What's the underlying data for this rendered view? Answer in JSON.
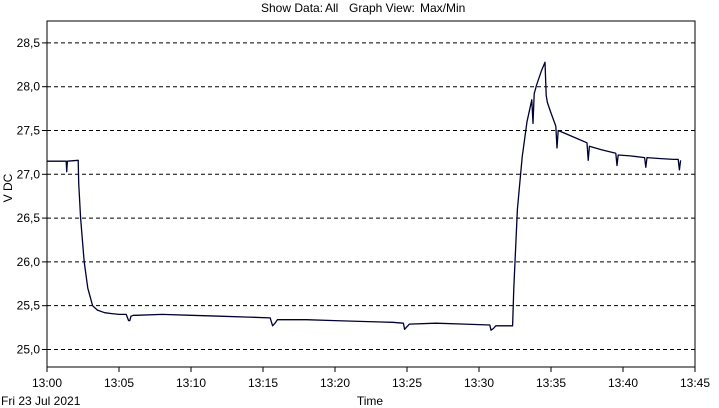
{
  "header": {
    "show_data_label": "Show Data:",
    "show_data_value": "All",
    "graph_view_label": "Graph View:",
    "graph_view_value": "Max/Min"
  },
  "chart_data": {
    "type": "line",
    "xlabel": "Time",
    "ylabel": "V DC",
    "date_label": "Fri 23 Jul 2021",
    "xlim": [
      "13:00",
      "13:45"
    ],
    "ylim": [
      24.8,
      28.75
    ],
    "grid": true,
    "grid_style": "dashed",
    "x_ticks": [
      "13:00",
      "13:05",
      "13:10",
      "13:15",
      "13:20",
      "13:25",
      "13:30",
      "13:35",
      "13:40",
      "13:45"
    ],
    "y_ticks": [
      "25,0",
      "25,5",
      "26,0",
      "26,5",
      "27,0",
      "27,5",
      "28,0",
      "28,5"
    ],
    "y_tick_values": [
      25.0,
      25.5,
      26.0,
      26.5,
      27.0,
      27.5,
      28.0,
      28.5
    ],
    "line_color": "#000033",
    "series": [
      {
        "x": [
          "13:00:00",
          "13:01:20",
          "13:01:22",
          "13:01:25",
          "13:02:10",
          "13:02:12",
          "13:02:20",
          "13:02:35",
          "13:02:50",
          "13:03:10",
          "13:03:30",
          "13:04:00",
          "13:04:30",
          "13:05:00",
          "13:05:30",
          "13:05:40",
          "13:05:45",
          "13:05:50",
          "13:06:00",
          "13:06:10",
          "13:08:00",
          "13:10:00",
          "13:12:00",
          "13:14:00",
          "13:15:30",
          "13:15:40",
          "13:15:50",
          "13:16:00",
          "13:18:00",
          "13:20:00",
          "13:22:00",
          "13:24:00",
          "13:24:45",
          "13:24:50",
          "13:25:00",
          "13:25:10",
          "13:27:00",
          "13:29:00",
          "13:30:45",
          "13:30:50",
          "13:31:00",
          "13:31:10",
          "13:32:20",
          "13:32:25",
          "13:32:40",
          "13:33:00",
          "13:33:20",
          "13:33:40",
          "13:33:45",
          "13:33:50",
          "13:34:00",
          "13:34:20",
          "13:34:35",
          "13:34:40",
          "13:34:45",
          "13:35:00",
          "13:35:20",
          "13:35:25",
          "13:35:30",
          "13:36:30",
          "13:37:30",
          "13:37:35",
          "13:37:40",
          "13:38:30",
          "13:39:30",
          "13:39:35",
          "13:39:40",
          "13:40:30",
          "13:41:30",
          "13:41:35",
          "13:41:40",
          "13:42:30",
          "13:43:30",
          "13:43:50",
          "13:43:55",
          "13:44:00"
        ],
        "values": [
          27.15,
          27.15,
          27.03,
          27.15,
          27.16,
          26.9,
          26.5,
          26.0,
          25.7,
          25.5,
          25.45,
          25.42,
          25.41,
          25.4,
          25.4,
          25.33,
          25.33,
          25.38,
          25.39,
          25.39,
          25.4,
          25.39,
          25.38,
          25.37,
          25.36,
          25.27,
          25.3,
          25.34,
          25.34,
          25.33,
          25.32,
          25.31,
          25.3,
          25.23,
          25.26,
          25.29,
          25.3,
          25.29,
          25.28,
          25.22,
          25.24,
          25.27,
          25.27,
          25.7,
          26.6,
          27.2,
          27.6,
          27.85,
          27.58,
          27.92,
          28.02,
          28.18,
          28.28,
          27.9,
          27.82,
          27.7,
          27.55,
          27.3,
          27.5,
          27.43,
          27.36,
          27.16,
          27.32,
          27.28,
          27.24,
          27.1,
          27.22,
          27.21,
          27.19,
          27.08,
          27.19,
          27.18,
          27.17,
          27.17,
          27.05,
          27.16
        ]
      }
    ]
  }
}
